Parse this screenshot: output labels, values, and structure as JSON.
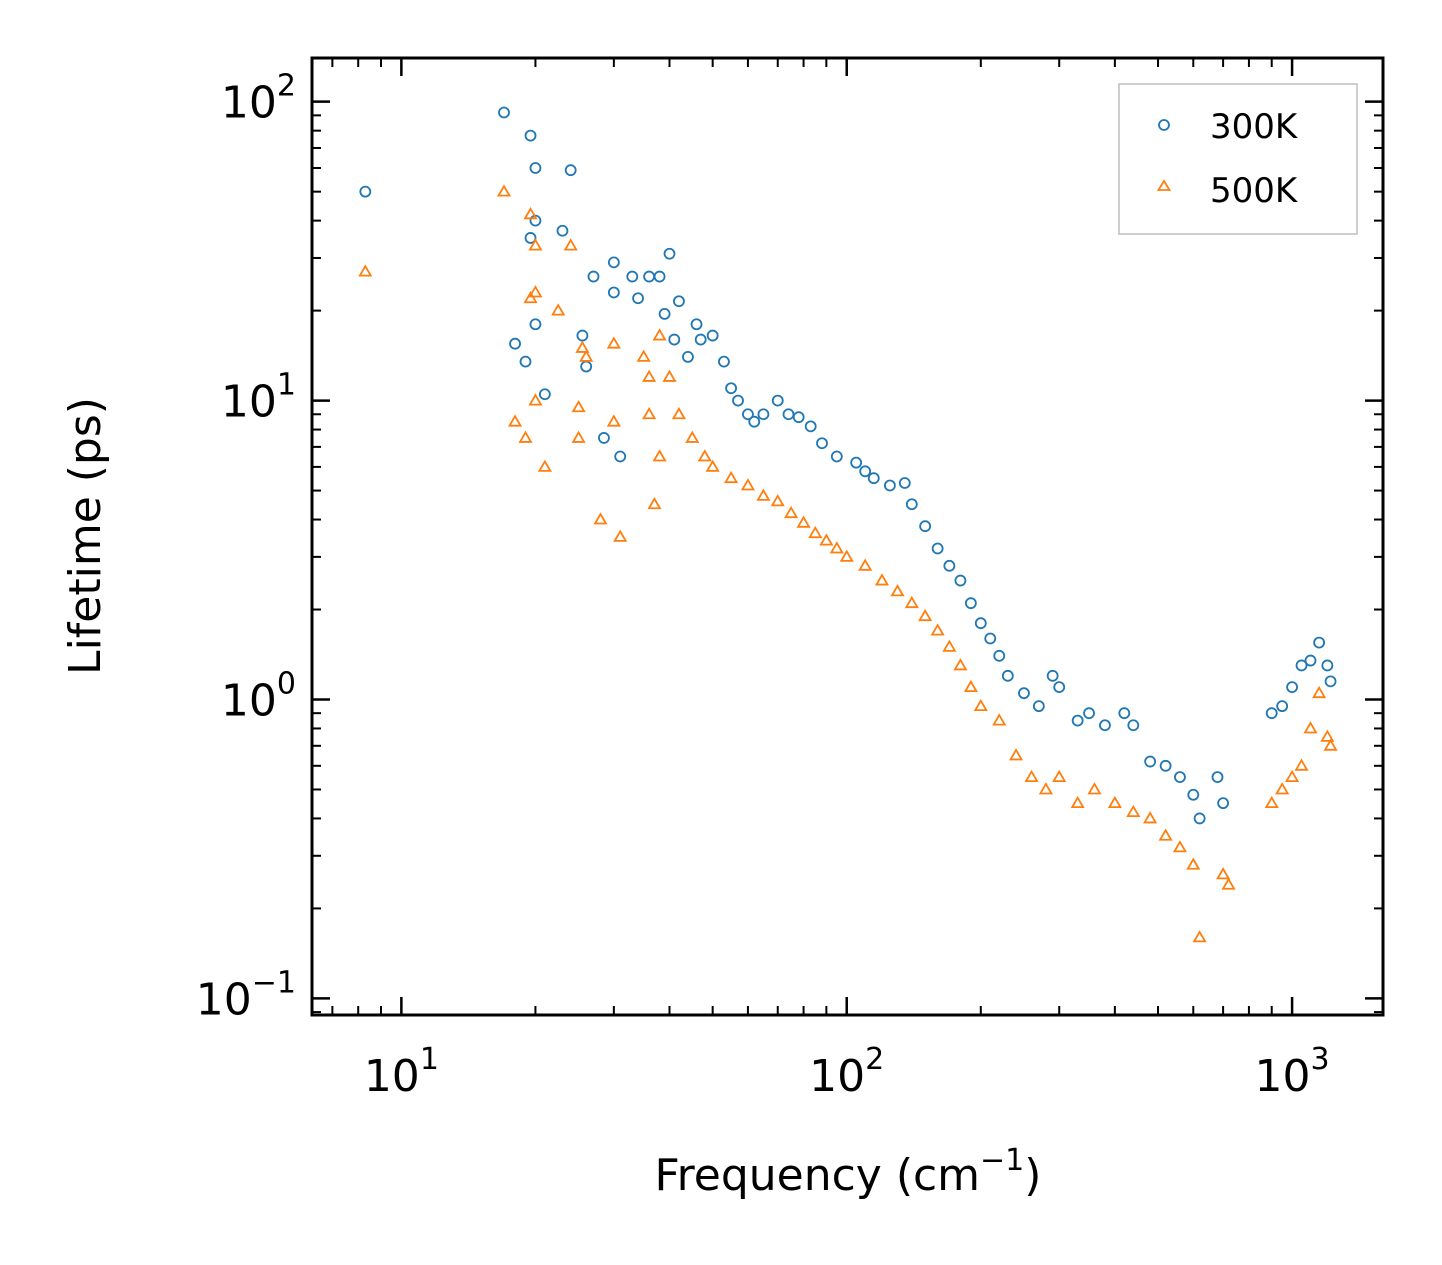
{
  "chart_data": {
    "type": "scatter",
    "title": "",
    "xlabel": "Frequency (cm",
    "xlabel_sup": "−1",
    "xlabel_suffix": ")",
    "ylabel": "Lifetime (ps)",
    "xscale": "log",
    "yscale": "log",
    "xlim": [
      6.3,
      1600
    ],
    "ylim": [
      0.088,
      140
    ],
    "legend_position": "top-right",
    "x_ticks": [
      {
        "value": 10,
        "base": "10",
        "exp": "1"
      },
      {
        "value": 100,
        "base": "10",
        "exp": "2"
      },
      {
        "value": 1000,
        "base": "10",
        "exp": "3"
      }
    ],
    "y_ticks": [
      {
        "value": 0.1,
        "base": "10",
        "exp": "−1"
      },
      {
        "value": 1,
        "base": "10",
        "exp": "0"
      },
      {
        "value": 10,
        "base": "10",
        "exp": "1"
      },
      {
        "value": 100,
        "base": "10",
        "exp": "2"
      }
    ],
    "series": [
      {
        "name": "300K",
        "color": "#1f77b4",
        "marker": "circle",
        "points": [
          [
            8.3,
            50
          ],
          [
            17,
            92
          ],
          [
            19.5,
            77
          ],
          [
            20,
            60
          ],
          [
            23,
            37
          ],
          [
            24,
            59
          ],
          [
            19.5,
            35
          ],
          [
            20,
            40
          ],
          [
            20,
            18
          ],
          [
            19,
            13.5
          ],
          [
            18,
            15.5
          ],
          [
            21,
            10.5
          ],
          [
            26,
            13
          ],
          [
            25.5,
            16.5
          ],
          [
            27,
            26
          ],
          [
            28.5,
            7.5
          ],
          [
            30,
            29
          ],
          [
            31,
            6.5
          ],
          [
            30,
            23
          ],
          [
            33,
            26
          ],
          [
            34,
            22
          ],
          [
            36,
            26
          ],
          [
            38,
            26
          ],
          [
            40,
            31
          ],
          [
            42,
            21.5
          ],
          [
            39,
            19.5
          ],
          [
            41,
            16
          ],
          [
            44,
            14
          ],
          [
            46,
            18
          ],
          [
            47,
            16
          ],
          [
            50,
            16.5
          ],
          [
            53,
            13.5
          ],
          [
            55,
            11
          ],
          [
            57,
            10
          ],
          [
            60,
            9
          ],
          [
            62,
            8.5
          ],
          [
            65,
            9
          ],
          [
            70,
            10
          ],
          [
            74,
            9
          ],
          [
            78,
            8.8
          ],
          [
            83,
            8.2
          ],
          [
            88,
            7.2
          ],
          [
            95,
            6.5
          ],
          [
            105,
            6.2
          ],
          [
            110,
            5.8
          ],
          [
            115,
            5.5
          ],
          [
            125,
            5.2
          ],
          [
            135,
            5.3
          ],
          [
            140,
            4.5
          ],
          [
            150,
            3.8
          ],
          [
            160,
            3.2
          ],
          [
            170,
            2.8
          ],
          [
            180,
            2.5
          ],
          [
            190,
            2.1
          ],
          [
            200,
            1.8
          ],
          [
            210,
            1.6
          ],
          [
            220,
            1.4
          ],
          [
            230,
            1.2
          ],
          [
            250,
            1.05
          ],
          [
            270,
            0.95
          ],
          [
            290,
            1.2
          ],
          [
            300,
            1.1
          ],
          [
            330,
            0.85
          ],
          [
            350,
            0.9
          ],
          [
            380,
            0.82
          ],
          [
            420,
            0.9
          ],
          [
            440,
            0.82
          ],
          [
            480,
            0.62
          ],
          [
            520,
            0.6
          ],
          [
            560,
            0.55
          ],
          [
            600,
            0.48
          ],
          [
            620,
            0.4
          ],
          [
            680,
            0.55
          ],
          [
            700,
            0.45
          ],
          [
            900,
            0.9
          ],
          [
            950,
            0.95
          ],
          [
            1000,
            1.1
          ],
          [
            1050,
            1.3
          ],
          [
            1100,
            1.35
          ],
          [
            1150,
            1.55
          ],
          [
            1200,
            1.3
          ],
          [
            1220,
            1.15
          ]
        ]
      },
      {
        "name": "500K",
        "color": "#ff7f0e",
        "marker": "triangle",
        "points": [
          [
            8.3,
            27
          ],
          [
            17,
            50
          ],
          [
            19.5,
            42
          ],
          [
            20,
            33
          ],
          [
            20,
            23
          ],
          [
            24,
            33
          ],
          [
            19.5,
            22
          ],
          [
            22.5,
            20
          ],
          [
            20,
            10
          ],
          [
            18,
            8.5
          ],
          [
            19,
            7.5
          ],
          [
            21,
            6
          ],
          [
            25.5,
            15
          ],
          [
            25,
            9.5
          ],
          [
            26,
            14
          ],
          [
            25,
            7.5
          ],
          [
            28,
            4
          ],
          [
            30,
            15.5
          ],
          [
            30,
            8.5
          ],
          [
            31,
            3.5
          ],
          [
            35,
            14
          ],
          [
            36,
            12
          ],
          [
            36,
            9
          ],
          [
            38,
            16.5
          ],
          [
            40,
            12
          ],
          [
            37,
            4.5
          ],
          [
            38,
            6.5
          ],
          [
            42,
            9
          ],
          [
            45,
            7.5
          ],
          [
            48,
            6.5
          ],
          [
            50,
            6
          ],
          [
            55,
            5.5
          ],
          [
            60,
            5.2
          ],
          [
            65,
            4.8
          ],
          [
            70,
            4.6
          ],
          [
            75,
            4.2
          ],
          [
            80,
            3.9
          ],
          [
            85,
            3.6
          ],
          [
            90,
            3.4
          ],
          [
            95,
            3.2
          ],
          [
            100,
            3
          ],
          [
            110,
            2.8
          ],
          [
            120,
            2.5
          ],
          [
            130,
            2.3
          ],
          [
            140,
            2.1
          ],
          [
            150,
            1.9
          ],
          [
            160,
            1.7
          ],
          [
            170,
            1.5
          ],
          [
            180,
            1.3
          ],
          [
            190,
            1.1
          ],
          [
            200,
            0.95
          ],
          [
            220,
            0.85
          ],
          [
            240,
            0.65
          ],
          [
            260,
            0.55
          ],
          [
            280,
            0.5
          ],
          [
            300,
            0.55
          ],
          [
            330,
            0.45
          ],
          [
            360,
            0.5
          ],
          [
            400,
            0.45
          ],
          [
            440,
            0.42
          ],
          [
            480,
            0.4
          ],
          [
            520,
            0.35
          ],
          [
            560,
            0.32
          ],
          [
            600,
            0.28
          ],
          [
            620,
            0.16
          ],
          [
            700,
            0.26
          ],
          [
            720,
            0.24
          ],
          [
            900,
            0.45
          ],
          [
            950,
            0.5
          ],
          [
            1000,
            0.55
          ],
          [
            1050,
            0.6
          ],
          [
            1100,
            0.8
          ],
          [
            1150,
            1.05
          ],
          [
            1200,
            0.75
          ],
          [
            1220,
            0.7
          ]
        ]
      }
    ]
  }
}
